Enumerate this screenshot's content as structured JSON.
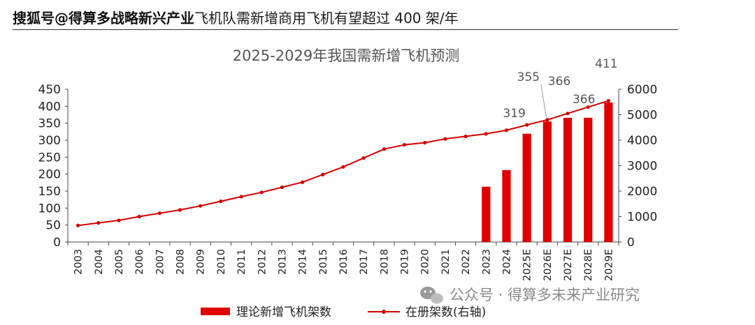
{
  "header": {
    "watermark": "搜狐号@得算多战略新兴产业",
    "title_tail": "飞机队需新增商用飞机有望超过 400 架/年"
  },
  "footer_watermark": "公众号 · 得算多未来产业研究",
  "colors": {
    "bar": "#e00000",
    "line": "#d40000",
    "axis": "#444444"
  },
  "chart_data": {
    "type": "bar",
    "title": "2025-2029年我国需新增飞机预测",
    "categories": [
      "2003",
      "2004",
      "2005",
      "2006",
      "2007",
      "2008",
      "2009",
      "2010",
      "2011",
      "2012",
      "2013",
      "2014",
      "2015",
      "2016",
      "2017",
      "2018",
      "2019",
      "2020",
      "2021",
      "2022",
      "2023",
      "2024",
      "2025E",
      "2026E",
      "2027E",
      "2028E",
      "2029E"
    ],
    "y_left": {
      "min": 0,
      "max": 450,
      "ticks": [
        0,
        50,
        100,
        150,
        200,
        250,
        300,
        350,
        400,
        450
      ]
    },
    "y_right": {
      "min": 0,
      "max": 6000,
      "ticks": [
        0,
        1000,
        2000,
        3000,
        4000,
        5000,
        6000
      ]
    },
    "series": [
      {
        "name": "理论新增飞机架数",
        "type": "bar",
        "axis": "left",
        "values": [
          null,
          null,
          null,
          null,
          null,
          null,
          null,
          null,
          null,
          null,
          null,
          null,
          null,
          null,
          null,
          null,
          null,
          null,
          null,
          null,
          163,
          212,
          319,
          355,
          366,
          366,
          411
        ]
      },
      {
        "name": "在册架数(右轴)",
        "type": "line",
        "axis": "right",
        "values": [
          650,
          750,
          850,
          1000,
          1130,
          1260,
          1420,
          1600,
          1780,
          1950,
          2150,
          2350,
          2650,
          2950,
          3300,
          3650,
          3820,
          3900,
          4050,
          4150,
          4250,
          4390,
          4600,
          4800,
          5050,
          5300,
          5550
        ]
      }
    ],
    "data_labels": [
      {
        "category": "2025E",
        "text": "319"
      },
      {
        "category": "2026E",
        "text": "355"
      },
      {
        "category": "2027E",
        "text": "366"
      },
      {
        "category": "2028E",
        "text": "366"
      },
      {
        "category": "2029E",
        "text": "411"
      }
    ],
    "legend": {
      "position": "bottom"
    },
    "grid": false
  }
}
